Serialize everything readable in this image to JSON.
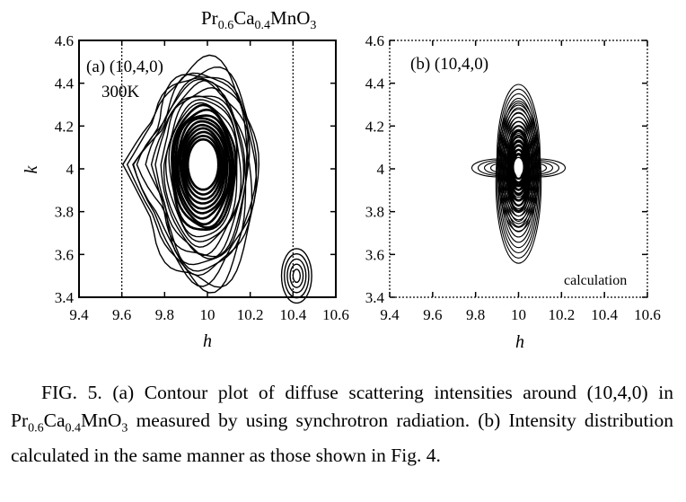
{
  "figure_title": {
    "prefix": "Pr",
    "sub1": "0.6",
    "mid": "Ca",
    "sub2": "0.4",
    "suffix": "MnO",
    "sub3": "3"
  },
  "chart_data": [
    {
      "type": "contour",
      "panel_label": "(a) (10,4,0)",
      "temperature_label": "300K",
      "xlabel": "h",
      "ylabel": "k",
      "xlim": [
        9.4,
        10.6
      ],
      "ylim": [
        3.4,
        4.6
      ],
      "x_ticks": [
        "9.4",
        "9.6",
        "9.8",
        "10",
        "10.2",
        "10.4",
        "10.6"
      ],
      "y_ticks": [
        "3.4",
        "3.6",
        "3.8",
        "4",
        "4.2",
        "4.4",
        "4.6"
      ],
      "dotted_guides_h": [
        9.6,
        10.4
      ],
      "peaks": [
        {
          "h": 9.98,
          "k": 4.02,
          "levels": 22
        },
        {
          "h": 10.4,
          "k": 3.5,
          "levels": 5
        }
      ]
    },
    {
      "type": "contour",
      "panel_label": "(b) (10,4,0)",
      "annotation": "calculation",
      "xlabel": "h",
      "ylabel": "",
      "xlim": [
        9.4,
        10.6
      ],
      "ylim": [
        3.4,
        4.6
      ],
      "x_ticks": [
        "9.4",
        "9.6",
        "9.8",
        "10",
        "10.2",
        "10.4",
        "10.6"
      ],
      "y_ticks": [
        "3.4",
        "3.6",
        "3.8",
        "4",
        "4.2",
        "4.4",
        "4.6"
      ],
      "peaks": [
        {
          "h": 10.0,
          "k": 4.0,
          "levels": 16
        }
      ]
    }
  ],
  "caption": {
    "p1": "FIG. 5. (a) Contour plot of diffuse scattering intensities around (10,4,0) in ",
    "f_pr": "Pr",
    "f_s1": "0.6",
    "f_ca": "Ca",
    "f_s2": "0.4",
    "f_mn": "MnO",
    "f_s3": "3",
    "p2": " measured by using synchrotron radiation. (b) Intensity distribution calculated in the same manner as those shown in Fig. 4."
  }
}
